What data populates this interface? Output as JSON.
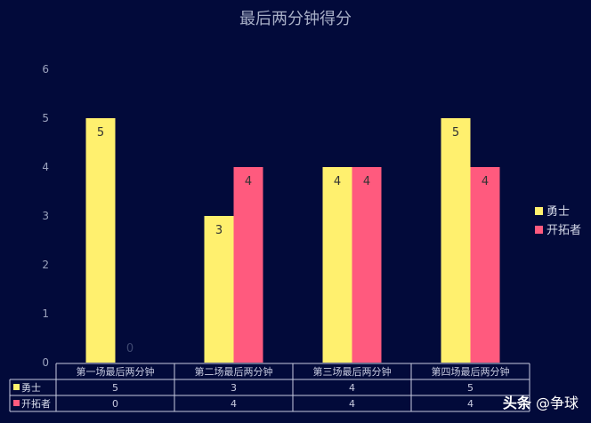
{
  "chart_data": {
    "type": "bar",
    "title": "最后两分钟得分",
    "categories": [
      "第一场最后两分钟",
      "第二场最后两分钟",
      "第三场最后两分钟",
      "第四场最后两分钟"
    ],
    "series": [
      {
        "name": "勇士",
        "values": [
          5,
          3,
          4,
          5
        ],
        "color": "#fff06e"
      },
      {
        "name": "开拓者",
        "values": [
          0,
          4,
          4,
          4
        ],
        "color": "#ff5a7e"
      }
    ],
    "ylim": [
      0,
      6
    ],
    "yticks": [
      "0",
      "1",
      "2",
      "3",
      "4",
      "5",
      "6"
    ],
    "legend_position": "right",
    "data_table": true,
    "grid": false
  },
  "watermark": {
    "brand": "头条",
    "handle": "@争球"
  }
}
